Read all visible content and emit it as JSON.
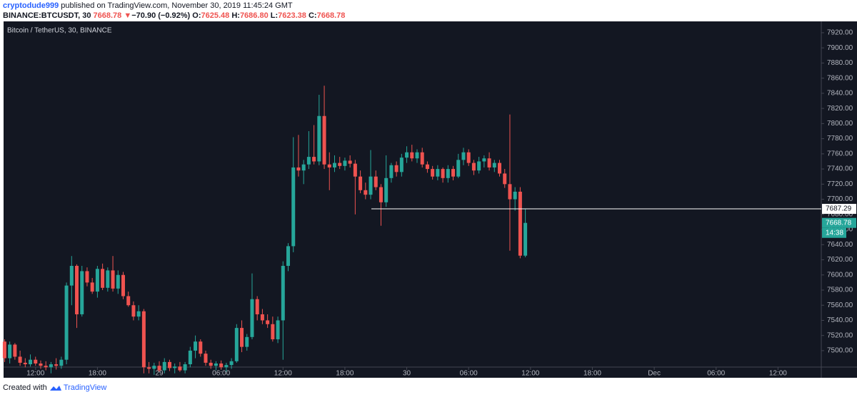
{
  "header": {
    "user": "cryptodude999",
    "published": " published on TradingView.com, November 30, 2019 11:45:24 GMT",
    "symbol": "BINANCE:BTCUSDT, 30",
    "price": "7668.78",
    "arrow": "▼",
    "change": "−70.90 (−0.92%)",
    "o_label": "O:",
    "o": "7625.48",
    "h_label": "H:",
    "h": "7686.80",
    "l_label": "L:",
    "l": "7623.38",
    "c_label": "C:",
    "c": "7668.78"
  },
  "footer": {
    "created": "Created with",
    "brand": "TradingView"
  },
  "chart_data": {
    "type": "candlestick",
    "title": "Bitcoin / TetherUS, 30, BINANCE",
    "up_color": "#26a69a",
    "down_color": "#ef5350",
    "x": [
      9,
      9.5,
      10,
      10.5,
      11,
      11.5,
      12,
      12.5,
      13,
      13.5,
      14,
      14.5,
      15,
      15.5,
      16,
      16.5,
      17,
      17.5,
      18,
      18.5,
      19,
      19.5,
      20,
      20.5,
      21,
      21.5,
      22,
      22.5,
      23,
      23.5,
      24,
      24.5,
      25,
      25.5,
      26,
      26.5,
      27,
      27.5,
      28,
      28.5,
      29,
      29.5,
      30,
      30.5,
      31,
      31.5,
      32,
      32.5,
      33,
      33.5,
      34,
      34.5,
      35,
      35.5,
      36,
      36.5,
      37,
      37.5,
      38,
      38.5,
      39,
      39.5,
      40,
      40.5,
      41,
      41.5,
      42,
      42.5,
      43,
      43.5,
      44,
      44.5,
      45,
      45.5,
      46,
      46.5,
      47,
      47.5,
      48,
      48.5,
      49,
      49.5,
      50,
      50.5,
      51,
      51.5,
      52,
      52.5,
      53,
      53.5,
      54,
      54.5,
      55,
      55.5,
      56,
      56.5,
      57,
      57.5,
      58,
      58.5,
      59,
      59.5
    ],
    "open": [
      7512,
      7490,
      7508,
      7492,
      7484,
      7482,
      7488,
      7483,
      7480,
      7478,
      7482,
      7480,
      7488,
      7586,
      7612,
      7548,
      7605,
      7590,
      7578,
      7608,
      7583,
      7606,
      7582,
      7600,
      7572,
      7560,
      7545,
      7552,
      7478,
      7476,
      7480,
      7474,
      7485,
      7477,
      7479,
      7474,
      7482,
      7500,
      7512,
      7496,
      7484,
      7480,
      7483,
      7478,
      7481,
      7486,
      7530,
      7505,
      7518,
      7568,
      7548,
      7540,
      7535,
      7515,
      7540,
      7612,
      7638,
      7742,
      7738,
      7746,
      7756,
      7750,
      7810,
      7746,
      7742,
      7748,
      7744,
      7751,
      7747,
      7730,
      7712,
      7706,
      7730,
      7716,
      7696,
      7728,
      7745,
      7736,
      7755,
      7762,
      7754,
      7762,
      7746,
      7740,
      7730,
      7740,
      7728,
      7740,
      7730,
      7752,
      7762,
      7748,
      7738,
      7750,
      7754,
      7742,
      7748,
      7734,
      7720,
      7700,
      7710,
      7625.48
    ],
    "high": [
      7515,
      7512,
      7510,
      7500,
      7490,
      7495,
      7492,
      7487,
      7486,
      7485,
      7490,
      7492,
      7590,
      7625,
      7614,
      7612,
      7610,
      7596,
      7612,
      7615,
      7610,
      7625,
      7606,
      7604,
      7578,
      7565,
      7560,
      7555,
      7485,
      7484,
      7486,
      7490,
      7488,
      7483,
      7485,
      7485,
      7505,
      7520,
      7515,
      7500,
      7488,
      7486,
      7487,
      7484,
      7490,
      7535,
      7540,
      7522,
      7602,
      7572,
      7555,
      7548,
      7545,
      7545,
      7618,
      7642,
      7782,
      7785,
      7752,
      7790,
      7798,
      7838,
      7850,
      7762,
      7758,
      7756,
      7755,
      7758,
      7752,
      7738,
      7722,
      7765,
      7738,
      7720,
      7758,
      7748,
      7750,
      7760,
      7770,
      7772,
      7766,
      7768,
      7750,
      7744,
      7745,
      7742,
      7745,
      7744,
      7760,
      7768,
      7766,
      7752,
      7756,
      7758,
      7762,
      7752,
      7752,
      7740,
      7812,
      7716,
      7716,
      7686.8
    ],
    "low": [
      7485,
      7483,
      7488,
      7480,
      7478,
      7479,
      7480,
      7476,
      7474,
      7470,
      7475,
      7476,
      7482,
      7560,
      7530,
      7545,
      7585,
      7575,
      7570,
      7580,
      7578,
      7578,
      7575,
      7568,
      7558,
      7540,
      7540,
      7470,
      7470,
      7468,
      7472,
      7470,
      7473,
      7470,
      7472,
      7470,
      7478,
      7490,
      7492,
      7480,
      7476,
      7474,
      7475,
      7472,
      7476,
      7484,
      7498,
      7500,
      7515,
      7540,
      7535,
      7530,
      7512,
      7510,
      7488,
      7605,
      7630,
      7730,
      7720,
      7740,
      7746,
      7745,
      7740,
      7712,
      7736,
      7740,
      7738,
      7742,
      7680,
      7708,
      7700,
      7700,
      7712,
      7665,
      7690,
      7722,
      7730,
      7730,
      7748,
      7750,
      7748,
      7742,
      7735,
      7726,
      7725,
      7722,
      7722,
      7725,
      7728,
      7745,
      7744,
      7732,
      7734,
      7742,
      7738,
      7736,
      7730,
      7715,
      7632,
      7685,
      7622,
      7623.38
    ],
    "close": [
      7490,
      7508,
      7492,
      7484,
      7482,
      7488,
      7483,
      7480,
      7478,
      7482,
      7480,
      7488,
      7586,
      7612,
      7548,
      7605,
      7590,
      7578,
      7608,
      7583,
      7606,
      7582,
      7600,
      7572,
      7560,
      7545,
      7552,
      7478,
      7476,
      7480,
      7474,
      7485,
      7477,
      7479,
      7474,
      7482,
      7500,
      7512,
      7496,
      7484,
      7480,
      7483,
      7478,
      7481,
      7486,
      7530,
      7505,
      7518,
      7568,
      7548,
      7540,
      7535,
      7515,
      7540,
      7612,
      7638,
      7742,
      7738,
      7746,
      7756,
      7750,
      7810,
      7746,
      7742,
      7748,
      7744,
      7751,
      7747,
      7730,
      7712,
      7706,
      7730,
      7716,
      7696,
      7728,
      7745,
      7736,
      7755,
      7762,
      7754,
      7762,
      7746,
      7740,
      7730,
      7740,
      7728,
      7740,
      7730,
      7752,
      7762,
      7748,
      7738,
      7750,
      7754,
      7742,
      7748,
      7734,
      7720,
      7700,
      7710,
      7625.48,
      7668.78
    ],
    "xlim": [
      8.9,
      88.2
    ],
    "xticks": [
      {
        "value": 12,
        "label": "12:00"
      },
      {
        "value": 18,
        "label": "18:00"
      },
      {
        "value": 24,
        "label": "29"
      },
      {
        "value": 30,
        "label": "06:00"
      },
      {
        "value": 36,
        "label": "12:00"
      },
      {
        "value": 42,
        "label": "18:00"
      },
      {
        "value": 48,
        "label": "30"
      },
      {
        "value": 54,
        "label": "06:00"
      },
      {
        "value": 60,
        "label": "12:00"
      },
      {
        "value": 66,
        "label": "18:00"
      },
      {
        "value": 72,
        "label": "Dec"
      },
      {
        "value": 78,
        "label": "06:00"
      },
      {
        "value": 84,
        "label": "12:00"
      }
    ],
    "ylim": [
      7478.3,
      7935
    ],
    "yticks": [
      {
        "value": 7500,
        "label": "7500.00"
      },
      {
        "value": 7520,
        "label": "7520.00"
      },
      {
        "value": 7540,
        "label": "7540.00"
      },
      {
        "value": 7560,
        "label": "7560.00"
      },
      {
        "value": 7580,
        "label": "7580.00"
      },
      {
        "value": 7600,
        "label": "7600.00"
      },
      {
        "value": 7620,
        "label": "7620.00"
      },
      {
        "value": 7640,
        "label": "7640.00"
      },
      {
        "value": 7660,
        "label": "7660.00"
      },
      {
        "value": 7680,
        "label": "7680.00"
      },
      {
        "value": 7700,
        "label": "7700.00"
      },
      {
        "value": 7720,
        "label": "7720.00"
      },
      {
        "value": 7740,
        "label": "7740.00"
      },
      {
        "value": 7760,
        "label": "7760.00"
      },
      {
        "value": 7780,
        "label": "7780.00"
      },
      {
        "value": 7800,
        "label": "7800.00"
      },
      {
        "value": 7820,
        "label": "7820.00"
      },
      {
        "value": 7840,
        "label": "7840.00"
      },
      {
        "value": 7860,
        "label": "7860.00"
      },
      {
        "value": 7880,
        "label": "7880.00"
      },
      {
        "value": 7900,
        "label": "7900.00"
      },
      {
        "value": 7920,
        "label": "7920.00"
      }
    ],
    "hline": 7687.29,
    "countdown": "14:38"
  }
}
